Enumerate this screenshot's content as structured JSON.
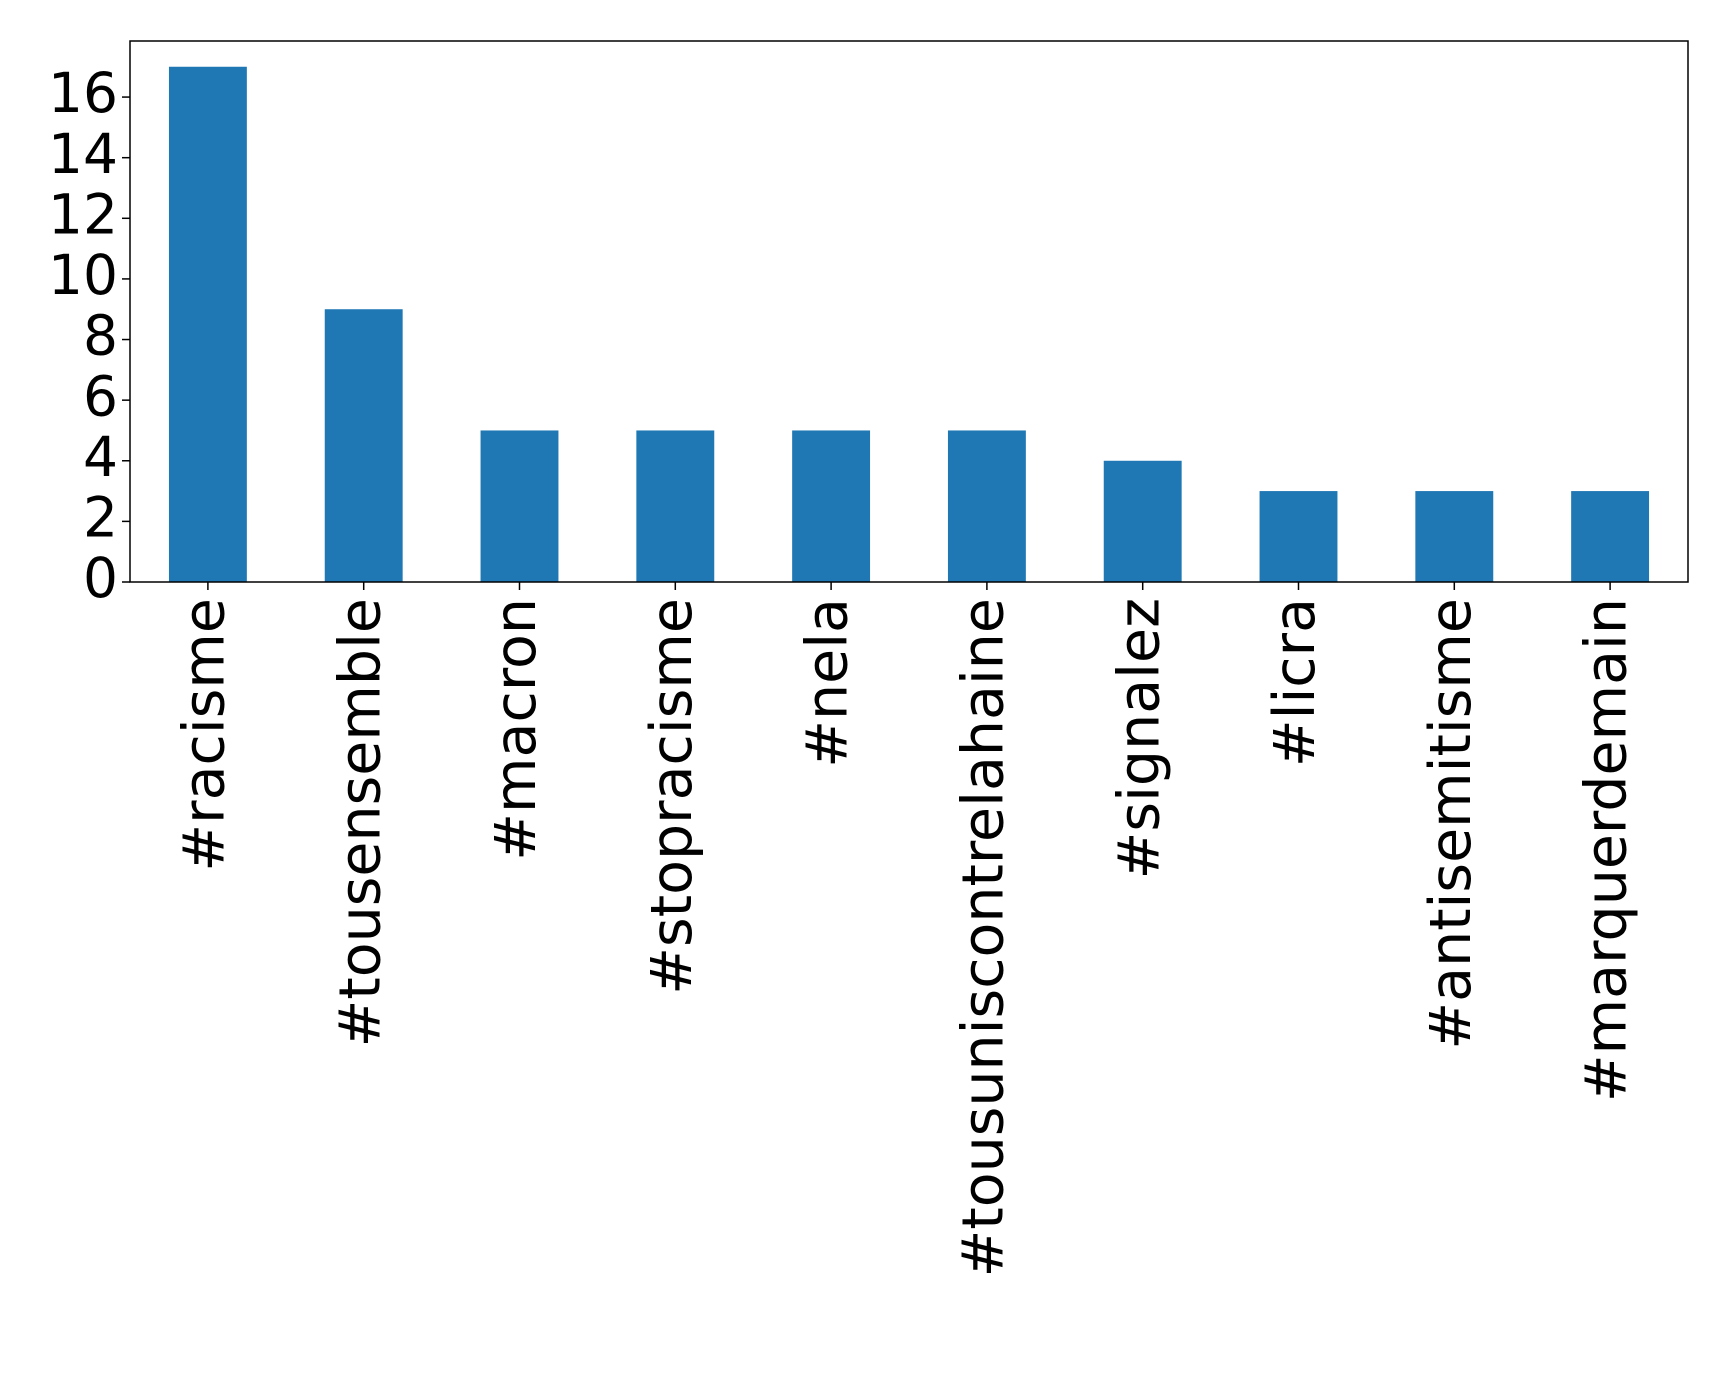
{
  "chart_data": {
    "type": "bar",
    "categories": [
      "#racisme",
      "#tousensemble",
      "#macron",
      "#stopracisme",
      "#nela",
      "#tousuniscontrelahaine",
      "#signalez",
      "#licra",
      "#antisemitisme",
      "#marquerdemain"
    ],
    "values": [
      17,
      9,
      5,
      5,
      5,
      5,
      4,
      3,
      3,
      3
    ],
    "color": "#1f77b4",
    "ylim": [
      0,
      17.85
    ],
    "yticks": [
      0,
      2,
      4,
      6,
      8,
      10,
      12,
      14,
      16
    ],
    "grid": false
  }
}
